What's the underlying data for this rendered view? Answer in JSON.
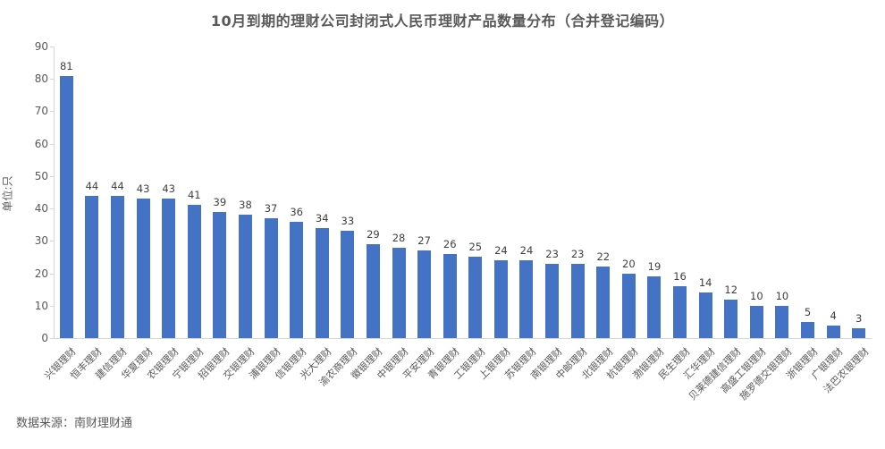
{
  "chart_data": {
    "type": "bar",
    "title": "10月到期的理财公司封闭式人民币理财产品数量分布（合并登记编码）",
    "ylabel": "单位:只",
    "xlabel": "",
    "categories": [
      "兴银理财",
      "恒丰理财",
      "建信理财",
      "华夏理财",
      "农银理财",
      "宁银理财",
      "招银理财",
      "交银理财",
      "浦银理财",
      "信银理财",
      "光大理财",
      "渝农商理财",
      "徽银理财",
      "中银理财",
      "平安理财",
      "青银理财",
      "工银理财",
      "上银理财",
      "苏银理财",
      "南银理财",
      "中邮理财",
      "北银理财",
      "杭银理财",
      "渤银理财",
      "民生理财",
      "汇华理财",
      "贝莱德建信理财",
      "高盛工银理财",
      "施罗德交银理财",
      "浙银理财",
      "广银理财",
      "法巴农银理财"
    ],
    "values": [
      81,
      44,
      44,
      43,
      43,
      41,
      39,
      38,
      37,
      36,
      34,
      33,
      29,
      28,
      27,
      26,
      25,
      24,
      24,
      23,
      23,
      22,
      20,
      19,
      16,
      14,
      12,
      10,
      10,
      5,
      4,
      3
    ],
    "ylim": [
      0,
      90
    ],
    "ytick_step": 10,
    "grid": false,
    "legend": "none",
    "value_labels": true,
    "colors": {
      "bar": "#4472C4",
      "title_text": "#595959",
      "axis_text": "#595959",
      "value_text": "#404040",
      "axis_line": "#d6d6d6"
    }
  },
  "footer": {
    "source": "数据来源：南财理财通"
  }
}
